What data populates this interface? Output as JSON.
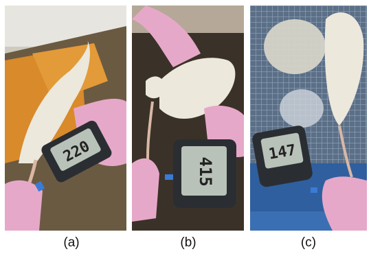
{
  "figure": {
    "panels": [
      {
        "caption": "(a)",
        "meter_reading": "220",
        "photo": "rat-on-orange-towel-glucometer"
      },
      {
        "caption": "(b)",
        "meter_reading": "415",
        "photo": "rat-held-upside-down-glucometer"
      },
      {
        "caption": "(c)",
        "meter_reading": "147",
        "photo": "rat-in-wire-cage-glucometer"
      }
    ]
  },
  "colors": {
    "glove": "#e6a8c8",
    "rat_fur": "#ece8dc",
    "towel": "#d98a2a",
    "cage_blue": "#2f5f9e",
    "meter_body": "#2a2e33",
    "meter_screen": "#b9c2b8"
  }
}
